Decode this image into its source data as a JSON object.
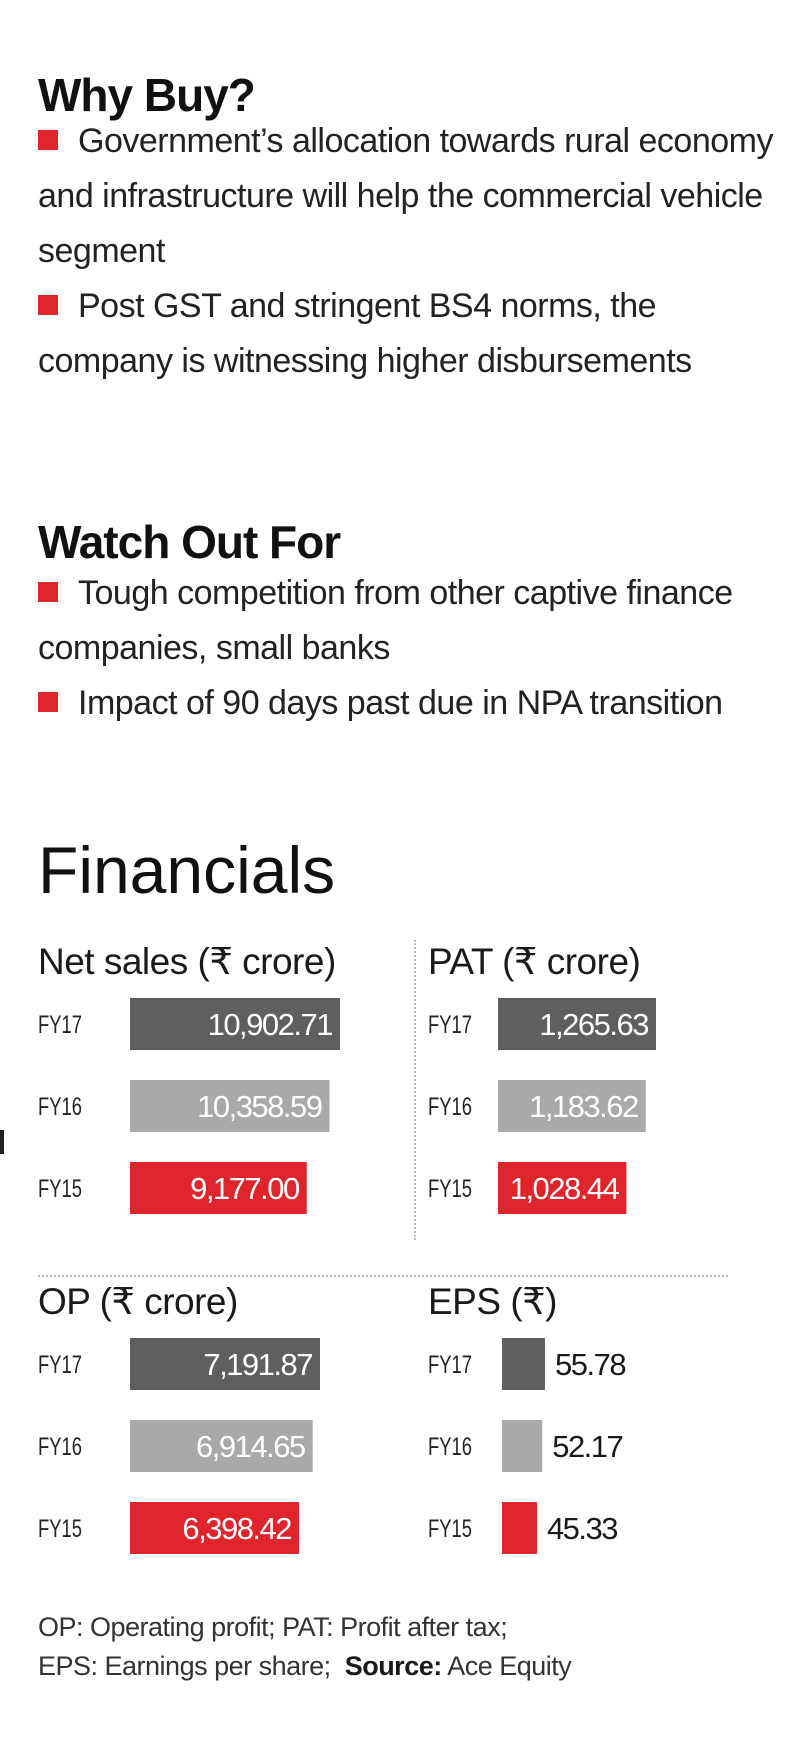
{
  "why_buy": {
    "heading": "Why Buy?",
    "bullets": [
      "Government’s allocation towards rural economy and infrastructure will help the commercial vehicle segment",
      "Post GST and stringent BS4 norms, the company is witnessing higher disbursements"
    ]
  },
  "watch_out": {
    "heading": "Watch Out For",
    "bullets": [
      "Tough competition from other captive finance companies, small banks",
      "Impact of 90 days past due in NPA transition"
    ]
  },
  "financials_title": "Financials",
  "colors": {
    "FY17": "#5f5f5f",
    "FY16": "#a9a9a9",
    "FY15": "#e0242b",
    "bullet": "#e0242b"
  },
  "chart_data": [
    {
      "type": "bar",
      "orientation": "horizontal",
      "title": "Net sales (₹ crore)",
      "categories": [
        "FY17",
        "FY16",
        "FY15"
      ],
      "values": [
        10902.71,
        10358.59,
        9177.0
      ],
      "value_labels": [
        "10,902.71",
        "10,358.59",
        "9,177.00"
      ],
      "label_position": "inside"
    },
    {
      "type": "bar",
      "orientation": "horizontal",
      "title": "PAT (₹ crore)",
      "categories": [
        "FY17",
        "FY16",
        "FY15"
      ],
      "values": [
        1265.63,
        1183.62,
        1028.44
      ],
      "value_labels": [
        "1,265.63",
        "1,183.62",
        "1,028.44"
      ],
      "label_position": "inside"
    },
    {
      "type": "bar",
      "orientation": "horizontal",
      "title": "OP (₹ crore)",
      "categories": [
        "FY17",
        "FY16",
        "FY15"
      ],
      "values": [
        7191.87,
        6914.65,
        6398.42
      ],
      "value_labels": [
        "7,191.87",
        "6,914.65",
        "6,398.42"
      ],
      "label_position": "inside"
    },
    {
      "type": "bar",
      "orientation": "horizontal",
      "title": "EPS (₹)",
      "categories": [
        "FY17",
        "FY16",
        "FY15"
      ],
      "values": [
        55.78,
        52.17,
        45.33
      ],
      "value_labels": [
        "55.78",
        "52.17",
        "45.33"
      ],
      "label_position": "outside"
    }
  ],
  "footnote": {
    "line1": "OP: Operating profit; PAT: Profit after tax;",
    "line2_prefix": "EPS: Earnings per share;",
    "source_label": "Source:",
    "source_value": "Ace Equity"
  }
}
